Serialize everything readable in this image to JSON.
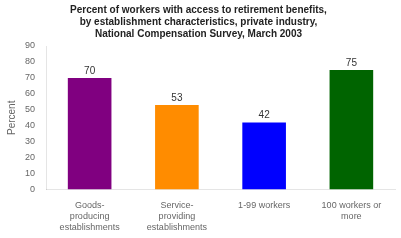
{
  "chart_data": {
    "type": "bar",
    "title": "Percent of workers with access to retirement benefits,\nby establishment characteristics, private industry,\nNational Compensation Survey, March 2003",
    "categories": [
      "Goods-\nproducing\nestablishments",
      "Service-\nproviding\nestablishments",
      "1-99 workers",
      "100 workers or\nmore"
    ],
    "values": [
      70,
      53,
      42,
      75
    ],
    "colors": [
      "#800080",
      "#FF8C00",
      "#0000FF",
      "#006400"
    ],
    "ylabel": "Percent",
    "ylim": [
      0,
      90
    ],
    "yticks": [
      0,
      10,
      20,
      30,
      40,
      50,
      60,
      70,
      80,
      90
    ],
    "grid": false,
    "data_labels": true
  }
}
